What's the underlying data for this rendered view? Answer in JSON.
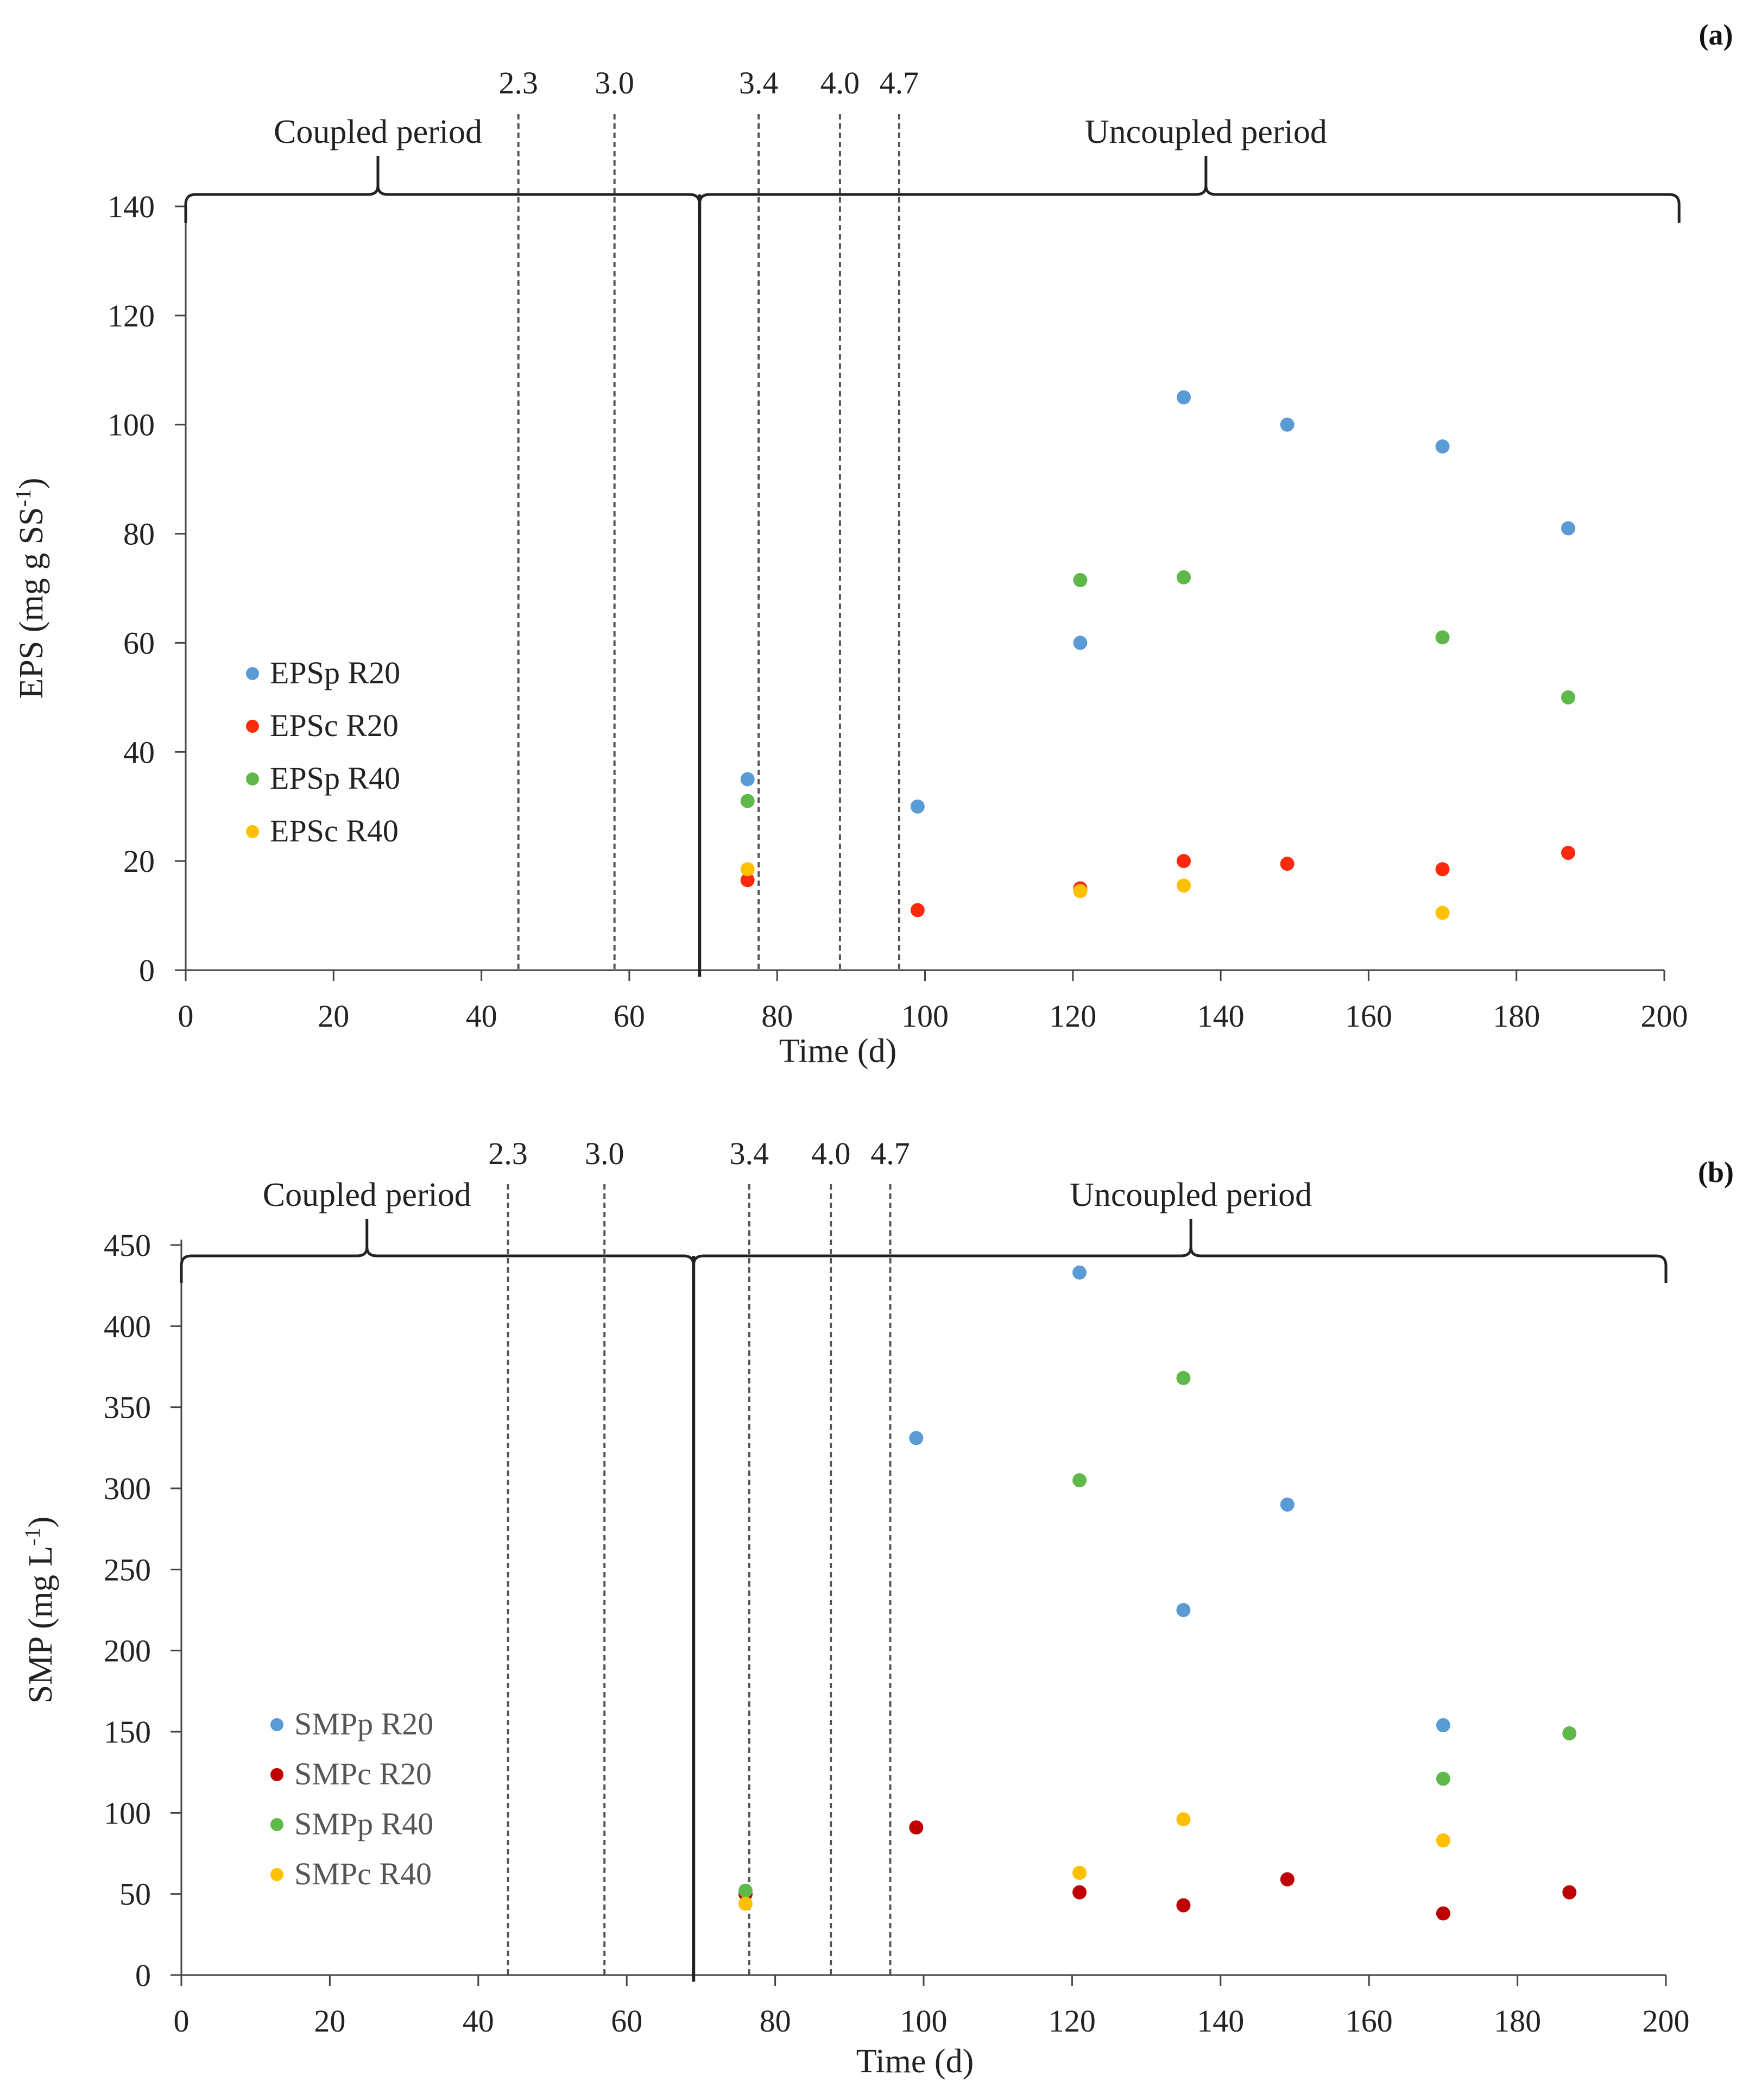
{
  "chart_data": [
    {
      "type": "scatter",
      "panel_label": "(a)",
      "xlabel": "Time (d)",
      "ylabel": {
        "main": "EPS (mg g SS",
        "sup": "-1",
        "close": ")"
      },
      "xlim": [
        0,
        200
      ],
      "ylim": [
        0,
        140
      ],
      "xticks": [
        "0",
        "20",
        "40",
        "60",
        "80",
        "100",
        "120",
        "140",
        "160",
        "180",
        "200"
      ],
      "yticks": [
        "0",
        "20",
        "40",
        "60",
        "80",
        "100",
        "120",
        "140"
      ],
      "period_divider_x": 69.5,
      "periods": [
        {
          "label": "Coupled period",
          "range": [
            0,
            69.5
          ],
          "brace_tip": 26
        },
        {
          "label": "Uncoupled period",
          "range": [
            69.5,
            202
          ],
          "brace_tip": 138
        }
      ],
      "markers": [
        {
          "x": 45,
          "label": "2.3"
        },
        {
          "x": 58,
          "label": "3.0"
        },
        {
          "x": 77.5,
          "label": "3.4"
        },
        {
          "x": 88.5,
          "label": "4.0"
        },
        {
          "x": 96.5,
          "label": "4.7"
        }
      ],
      "series": [
        {
          "name": "EPSp R20",
          "color": "#5b9bd5",
          "points": [
            [
              76,
              35
            ],
            [
              99,
              30
            ],
            [
              121,
              60
            ],
            [
              135,
              105
            ],
            [
              149,
              100
            ],
            [
              170,
              96
            ],
            [
              187,
              81
            ]
          ]
        },
        {
          "name": "EPSc R20",
          "color": "#ff2a0c",
          "points": [
            [
              76,
              16.5
            ],
            [
              99,
              11
            ],
            [
              121,
              15
            ],
            [
              135,
              20
            ],
            [
              149,
              19.5
            ],
            [
              170,
              18.5
            ],
            [
              187,
              21.5
            ]
          ]
        },
        {
          "name": "EPSp R40",
          "color": "#5fb84a",
          "points": [
            [
              76,
              31
            ],
            [
              121,
              71.5
            ],
            [
              135,
              72
            ],
            [
              170,
              61
            ],
            [
              187,
              50
            ]
          ]
        },
        {
          "name": "EPSc R40",
          "color": "#ffc000",
          "points": [
            [
              76,
              18.5
            ],
            [
              121,
              14.5
            ],
            [
              135,
              15.5
            ],
            [
              170,
              10.5
            ]
          ]
        }
      ]
    },
    {
      "type": "scatter",
      "panel_label": "(b)",
      "xlabel": "Time (d)",
      "ylabel": {
        "main": "SMP (mg L",
        "sup": "-1",
        "close": ")"
      },
      "xlim": [
        0,
        200
      ],
      "ylim": [
        0,
        450
      ],
      "xticks": [
        "0",
        "20",
        "40",
        "60",
        "80",
        "100",
        "120",
        "140",
        "160",
        "180",
        "200"
      ],
      "yticks": [
        "0",
        "50",
        "100",
        "150",
        "200",
        "250",
        "300",
        "350",
        "400",
        "450"
      ],
      "period_divider_x": 69,
      "periods": [
        {
          "label": "Coupled period",
          "range": [
            0,
            69
          ],
          "brace_tip": 25
        },
        {
          "label": "Uncoupled period",
          "range": [
            69,
            200
          ],
          "brace_tip": 136
        }
      ],
      "markers": [
        {
          "x": 44,
          "label": "2.3"
        },
        {
          "x": 57,
          "label": "3.0"
        },
        {
          "x": 76.5,
          "label": "3.4"
        },
        {
          "x": 87.5,
          "label": "4.0"
        },
        {
          "x": 95.5,
          "label": "4.7"
        }
      ],
      "series": [
        {
          "name": "SMPp R20",
          "color": "#5b9bd5",
          "points": [
            [
              99,
              331
            ],
            [
              121,
              433
            ],
            [
              135,
              225
            ],
            [
              149,
              290
            ],
            [
              170,
              154
            ]
          ]
        },
        {
          "name": "SMPc R20",
          "color": "#c00000",
          "points": [
            [
              76,
              50
            ],
            [
              99,
              91
            ],
            [
              121,
              51
            ],
            [
              135,
              43
            ],
            [
              149,
              59
            ],
            [
              170,
              38
            ],
            [
              187,
              51
            ]
          ]
        },
        {
          "name": "SMPp R40",
          "color": "#5fb84a",
          "points": [
            [
              76,
              52
            ],
            [
              121,
              305
            ],
            [
              135,
              368
            ],
            [
              170,
              121
            ],
            [
              187,
              149
            ]
          ]
        },
        {
          "name": "SMPc  R40",
          "color": "#ffc000",
          "points": [
            [
              76,
              44
            ],
            [
              121,
              63
            ],
            [
              135,
              96
            ],
            [
              170,
              83
            ]
          ]
        }
      ]
    }
  ]
}
